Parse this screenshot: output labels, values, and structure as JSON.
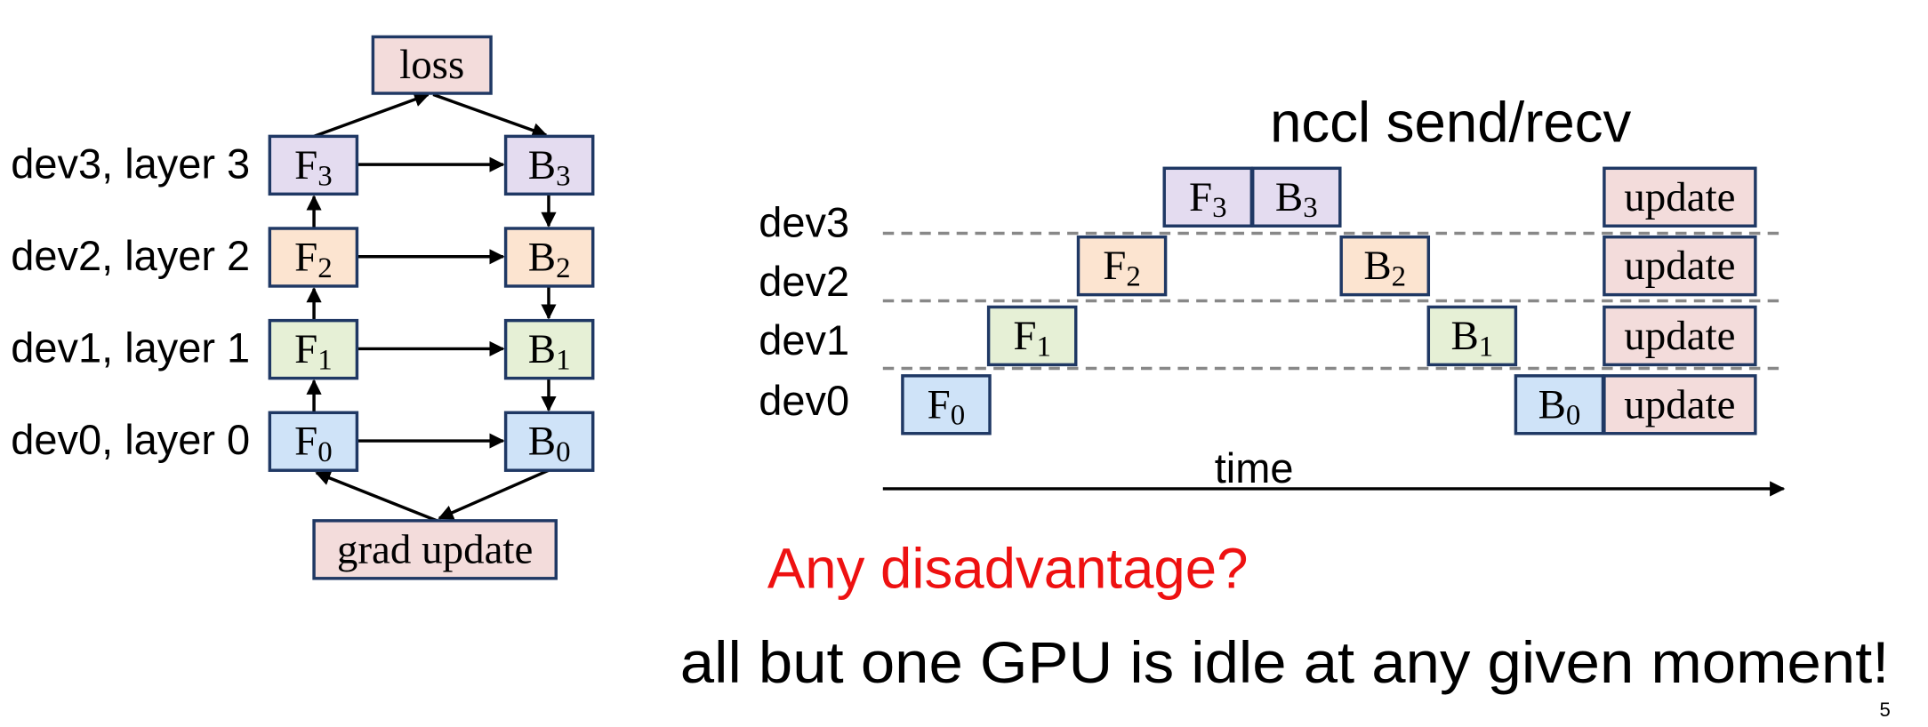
{
  "layer_diagram": {
    "top": "loss",
    "bottom": "grad update",
    "rows": [
      {
        "label": "dev3, layer 3",
        "forward": {
          "text": "F",
          "sub": "3"
        },
        "backward": {
          "text": "B",
          "sub": "3"
        }
      },
      {
        "label": "dev2, layer 2",
        "forward": {
          "text": "F",
          "sub": "2"
        },
        "backward": {
          "text": "B",
          "sub": "2"
        }
      },
      {
        "label": "dev1, layer 1",
        "forward": {
          "text": "F",
          "sub": "1"
        },
        "backward": {
          "text": "B",
          "sub": "1"
        }
      },
      {
        "label": "dev0, layer 0",
        "forward": {
          "text": "F",
          "sub": "0"
        },
        "backward": {
          "text": "B",
          "sub": "0"
        }
      }
    ]
  },
  "timeline": {
    "title": "nccl send/recv",
    "axis_label": "time",
    "rows": [
      {
        "label": "dev3",
        "blocks": [
          {
            "text": "F",
            "sub": "3"
          },
          {
            "text": "B",
            "sub": "3"
          },
          {
            "text": "update"
          }
        ]
      },
      {
        "label": "dev2",
        "blocks": [
          {
            "text": "F",
            "sub": "2"
          },
          {
            "text": "B",
            "sub": "2"
          },
          {
            "text": "update"
          }
        ]
      },
      {
        "label": "dev1",
        "blocks": [
          {
            "text": "F",
            "sub": "1"
          },
          {
            "text": "B",
            "sub": "1"
          },
          {
            "text": "update"
          }
        ]
      },
      {
        "label": "dev0",
        "blocks": [
          {
            "text": "F",
            "sub": "0"
          },
          {
            "text": "B",
            "sub": "0"
          },
          {
            "text": "update"
          }
        ]
      }
    ]
  },
  "question": "Any disadvantage?",
  "answer": "all but one GPU is idle at any given moment!",
  "page_number": "5"
}
